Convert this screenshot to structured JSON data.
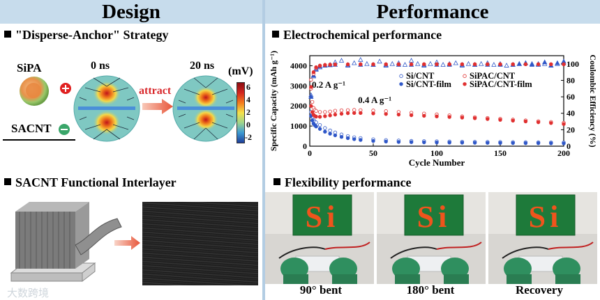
{
  "header": {
    "left_title": "Design",
    "right_title": "Performance"
  },
  "design": {
    "strategy_title": "\"Disperse-Anchor\" Strategy",
    "sipa_label": "SiPA",
    "sacnt_label": "SACNT",
    "time0": "0 ns",
    "time20": "20 ns",
    "attract_label": "attract",
    "colorbar_unit": "(mV)",
    "colorbar_ticks": [
      "6",
      "4",
      "2",
      "0",
      "-2"
    ],
    "interlayer_title": "SACNT Functional Interlayer"
  },
  "performance": {
    "electro_title": "Electrochemical performance",
    "flex_title": "Flexibility performance",
    "photos": [
      {
        "caption": "90° bent",
        "letters": "Si"
      },
      {
        "caption": "180° bent",
        "letters": "Si"
      },
      {
        "caption": "Recovery",
        "letters": "Si"
      }
    ]
  },
  "watermark": "大数跨境",
  "chart_data": {
    "type": "scatter",
    "title": "",
    "xlabel": "Cycle Number",
    "ylabel": "Specific Capacity (mAh g⁻¹)",
    "y2label": "Coulombic Efficiency (%)",
    "xlim": [
      0,
      200
    ],
    "ylim": [
      0,
      4500
    ],
    "y2lim": [
      0,
      110
    ],
    "xticks": [
      0,
      50,
      100,
      150,
      200
    ],
    "yticks": [
      0,
      1000,
      2000,
      3000,
      4000
    ],
    "y2ticks": [
      0,
      20,
      40,
      60,
      80,
      100
    ],
    "annotations": [
      "0.2 A g⁻¹",
      "0.4 A g⁻¹"
    ],
    "series": [
      {
        "name": "Si/CNT",
        "axis": "left",
        "marker": "open-circle",
        "color": "#2f57c8",
        "x": [
          1,
          2,
          3,
          4,
          5,
          8,
          12,
          16,
          20,
          25,
          30,
          35,
          40,
          50,
          60,
          70,
          80,
          90,
          100,
          110,
          120,
          130,
          140,
          150,
          160,
          170,
          180,
          190,
          200
        ],
        "y": [
          1700,
          1450,
          1300,
          1220,
          1180,
          1050,
          900,
          780,
          680,
          580,
          500,
          440,
          400,
          340,
          300,
          280,
          260,
          250,
          240,
          230,
          220,
          215,
          210,
          205,
          200,
          195,
          190,
          185,
          180
        ]
      },
      {
        "name": "Si/CNT-film",
        "axis": "left",
        "marker": "filled-circle",
        "color": "#2f57c8",
        "x": [
          1,
          2,
          3,
          4,
          5,
          8,
          12,
          16,
          20,
          25,
          30,
          35,
          40,
          50,
          60,
          70,
          80,
          90,
          100,
          110,
          120,
          130,
          140,
          150,
          160,
          170,
          180,
          190,
          200
        ],
        "y": [
          1500,
          1280,
          1120,
          1040,
          980,
          860,
          720,
          620,
          540,
          460,
          400,
          350,
          310,
          260,
          230,
          210,
          200,
          190,
          185,
          180,
          175,
          170,
          165,
          160,
          155,
          150,
          150,
          145,
          140
        ]
      },
      {
        "name": "SiPAC/CNT",
        "axis": "left",
        "marker": "open-circle",
        "color": "#e03030",
        "x": [
          1,
          2,
          3,
          4,
          5,
          8,
          12,
          16,
          20,
          25,
          30,
          35,
          40,
          50,
          60,
          70,
          80,
          90,
          100,
          110,
          120,
          130,
          140,
          150,
          160,
          170,
          180,
          190,
          200
        ],
        "y": [
          3300,
          2200,
          1900,
          1800,
          1750,
          1700,
          1700,
          1720,
          1760,
          1780,
          1790,
          1800,
          1790,
          1770,
          1740,
          1700,
          1660,
          1620,
          1580,
          1530,
          1480,
          1440,
          1400,
          1360,
          1320,
          1280,
          1240,
          1200,
          1160
        ]
      },
      {
        "name": "SiPAC/CNT-film",
        "axis": "left",
        "marker": "filled-circle",
        "color": "#e03030",
        "x": [
          1,
          2,
          3,
          4,
          5,
          8,
          12,
          16,
          20,
          25,
          30,
          35,
          40,
          50,
          60,
          70,
          80,
          90,
          100,
          110,
          120,
          130,
          140,
          150,
          160,
          170,
          180,
          190,
          200
        ],
        "y": [
          2000,
          1700,
          1560,
          1500,
          1470,
          1460,
          1490,
          1530,
          1570,
          1610,
          1640,
          1650,
          1650,
          1630,
          1600,
          1570,
          1540,
          1510,
          1480,
          1450,
          1420,
          1390,
          1350,
          1310,
          1270,
          1230,
          1190,
          1150,
          1100
        ]
      },
      {
        "name": "CE Si/CNT",
        "axis": "right",
        "marker": "open-triangle",
        "color": "#2f57c8",
        "x": [
          1,
          3,
          5,
          8,
          12,
          16,
          20,
          25,
          30,
          35,
          40,
          45,
          50,
          55,
          60,
          65,
          70,
          75,
          80,
          85,
          90,
          95,
          100,
          105,
          110,
          115,
          120,
          125,
          130,
          135,
          140,
          145,
          150,
          155,
          160,
          165,
          170,
          175,
          180,
          185,
          190,
          195,
          200
        ],
        "y": [
          62,
          85,
          93,
          96,
          98,
          99,
          102,
          104,
          98,
          101,
          105,
          100,
          99,
          103,
          98,
          100,
          101,
          99,
          104,
          100,
          98,
          100,
          102,
          99,
          100,
          101,
          98,
          100,
          99,
          100,
          101,
          99,
          100,
          98,
          99,
          100,
          101,
          100,
          99,
          100,
          98,
          100,
          101
        ]
      },
      {
        "name": "CE Si/CNT-film",
        "axis": "right",
        "marker": "filled-triangle",
        "color": "#2f57c8",
        "x": [
          1,
          3,
          5,
          8,
          12,
          16,
          20,
          30,
          40,
          50,
          60,
          70,
          80,
          90,
          100,
          110,
          120,
          130,
          140,
          150,
          160,
          165,
          170,
          175,
          180,
          185,
          190,
          195,
          200
        ],
        "y": [
          60,
          86,
          94,
          97,
          98,
          98.5,
          99,
          99,
          99,
          99,
          99,
          99,
          99,
          99,
          99,
          99,
          99,
          99,
          99,
          99,
          99,
          100,
          101,
          99,
          100,
          102,
          98,
          101,
          103
        ]
      },
      {
        "name": "CE SiPAC/CNT",
        "axis": "right",
        "marker": "open-circle",
        "color": "#e03030",
        "x": [
          1,
          3,
          5,
          8,
          12,
          16,
          20,
          30,
          40,
          50,
          60,
          70,
          80,
          90,
          100,
          110,
          120,
          130,
          140,
          150,
          160,
          170,
          180,
          190,
          200
        ],
        "y": [
          70,
          88,
          95,
          97.5,
          98.5,
          99,
          99.2,
          99.4,
          99.5,
          99.5,
          99.5,
          99.6,
          99.6,
          99.6,
          99.6,
          99.6,
          99.6,
          99.6,
          99.6,
          99.6,
          99.6,
          99.6,
          99.6,
          99.6,
          99.6
        ]
      },
      {
        "name": "CE SiPAC/CNT-film",
        "axis": "right",
        "marker": "filled-circle",
        "color": "#e03030",
        "x": [
          1,
          3,
          5,
          8,
          12,
          16,
          20,
          30,
          40,
          50,
          60,
          70,
          80,
          90,
          100,
          110,
          120,
          130,
          140,
          150,
          160,
          170,
          180,
          190,
          200
        ],
        "y": [
          72,
          90,
          96,
          98,
          98.8,
          99.2,
          99.4,
          99.5,
          99.6,
          99.6,
          99.6,
          99.6,
          99.6,
          99.6,
          99.6,
          99.6,
          99.6,
          99.6,
          99.6,
          99.6,
          99.6,
          99.6,
          99.6,
          99.6,
          99.6
        ]
      }
    ]
  }
}
